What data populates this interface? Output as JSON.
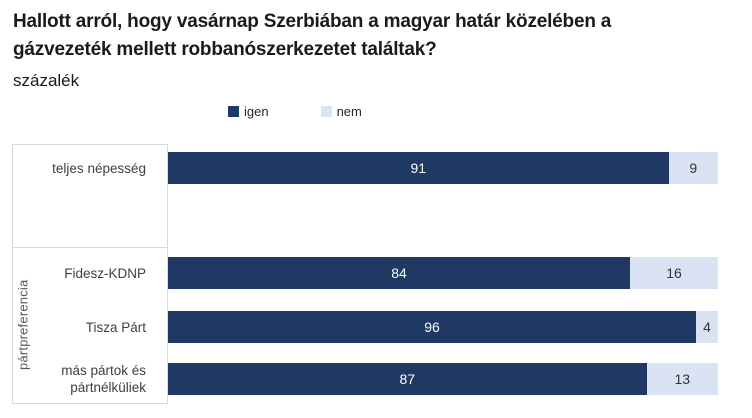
{
  "header": {
    "title_lines": [
      "Hallott arról, hogy vasárnap Szerbiában a magyar határ közelében a",
      "gázvezeték mellett robbanószerkezetet találtak?"
    ],
    "subtitle": "százalék"
  },
  "chart_data": {
    "type": "bar",
    "orientation": "horizontal",
    "stacked": true,
    "title": "Hallott arról, hogy vasárnap Szerbiában a magyar határ közelében a gázvezeték mellett robbanószerkezetet találtak?",
    "subtitle": "százalék",
    "unit": "percent",
    "xlim": [
      0,
      100
    ],
    "grid": false,
    "legend_position": "top",
    "categories": [
      "teljes népesség",
      "Fidesz-KDNP",
      "Tisza Párt",
      "más pártok és pártnélküliek"
    ],
    "groups": [
      {
        "label": "",
        "categories": [
          "teljes népesség"
        ]
      },
      {
        "label": "pártpreferencia",
        "categories": [
          "Fidesz-KDNP",
          "Tisza Párt",
          "más pártok és pártnélküliek"
        ]
      }
    ],
    "group_axis_label": "pártpreferencia",
    "series": [
      {
        "name": "igen",
        "color": "#1f3864",
        "values": [
          91,
          84,
          96,
          87
        ]
      },
      {
        "name": "nem",
        "color": "#dae3f3",
        "values": [
          9,
          16,
          4,
          13
        ]
      }
    ]
  },
  "colors": {
    "igen": "#1f3864",
    "nem": "#dae3f3",
    "axis_line": "#d9d9d9",
    "category_text": "#404040",
    "group_label_text": "#595959",
    "value_on_dark": "#ffffff",
    "value_on_light": "#333333"
  }
}
